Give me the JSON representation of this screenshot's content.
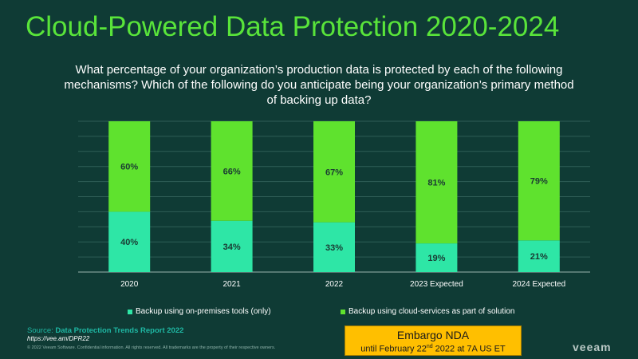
{
  "title": "Cloud-Powered Data Protection 2020-2024",
  "question": "What percentage of your organization’s production data is protected by each of the following mechanisms? Which of the following do you anticipate being your organization’s primary method of backing up data?",
  "chart_data": {
    "type": "bar",
    "stacked": true,
    "categories": [
      "2020",
      "2021",
      "2022",
      "2023 Expected",
      "2024 Expected"
    ],
    "series": [
      {
        "name": "Backup using on-premises tools (only)",
        "values": [
          40,
          34,
          33,
          19,
          21
        ],
        "labels": [
          "40%",
          "34%",
          "33%",
          "19%",
          "21%"
        ],
        "color": "#2ee6a6"
      },
      {
        "name": "Backup using cloud-services as part of solution",
        "values": [
          60,
          66,
          67,
          81,
          79
        ],
        "labels": [
          "60%",
          "66%",
          "67%",
          "81%",
          "79%"
        ],
        "color": "#5fe22e"
      }
    ],
    "ylim": [
      0,
      100
    ],
    "grid": true,
    "legend_position": "bottom"
  },
  "source": {
    "label": "Source: ",
    "title": "Data Protection Trends Report 2022",
    "url": "https://vee.am/DPR22"
  },
  "copyright": "© 2022 Veeam Software. Confidential information. All rights reserved. All trademarks are the property of their respective owners.",
  "embargo": {
    "line1": "Embargo NDA",
    "line2_pre": "until February 22",
    "line2_sup": "nd",
    "line2_post": " 2022 at 7A US ET"
  },
  "logo": "veeam"
}
